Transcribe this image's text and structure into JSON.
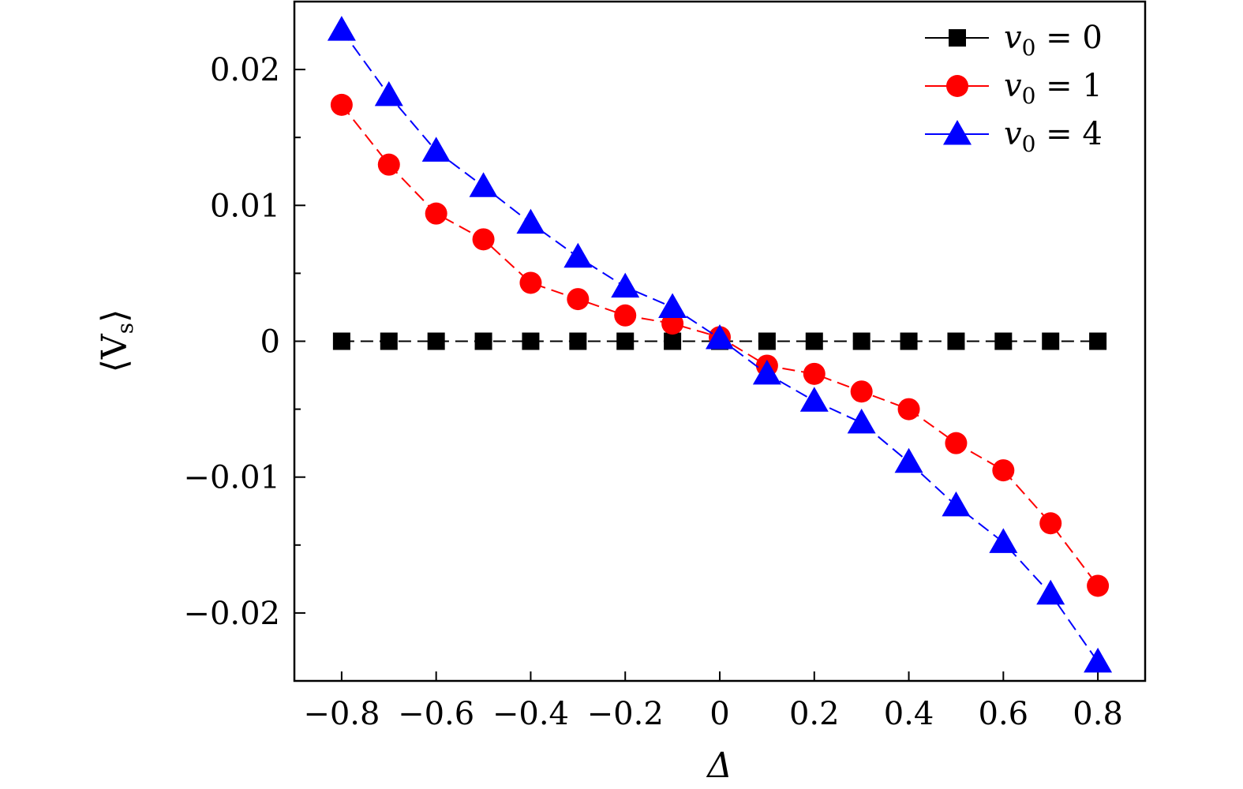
{
  "chart_data": {
    "type": "line",
    "title": "",
    "xlabel": "Δ",
    "ylabel": "⟨V",
    "ylabel_subscript": "s",
    "ylabel_close": "⟩",
    "x": [
      -0.8,
      -0.7,
      -0.6,
      -0.5,
      -0.4,
      -0.3,
      -0.2,
      -0.1,
      0,
      0.1,
      0.2,
      0.3,
      0.4,
      0.5,
      0.6,
      0.7,
      0.8
    ],
    "xlim": [
      -0.9,
      0.9
    ],
    "ylim": [
      -0.025,
      0.025
    ],
    "x_ticks": [
      -0.8,
      -0.6,
      -0.4,
      -0.2,
      0,
      0.2,
      0.4,
      0.6,
      0.8
    ],
    "x_tick_labels": [
      "−0.8",
      "−0.6",
      "−0.4",
      "−0.2",
      "0",
      "0.2",
      "0.4",
      "0.6",
      "0.8"
    ],
    "y_ticks": [
      -0.02,
      -0.01,
      0,
      0.01,
      0.02
    ],
    "y_tick_labels": [
      "−0.02",
      "−0.01",
      "0",
      "0.01",
      "0.02"
    ],
    "y_minor_ticks": [
      -0.025,
      -0.015,
      -0.005,
      0.005,
      0.015,
      0.025
    ],
    "legend_position": "top-right",
    "grid": false,
    "series": [
      {
        "name": "v0 = 0",
        "legend_var": "v",
        "legend_sub": "0",
        "legend_eq": " = 0",
        "color": "#000000",
        "marker": "square",
        "values": [
          0,
          0,
          0,
          0,
          0,
          0,
          0,
          0,
          0,
          0,
          0,
          0,
          0,
          0,
          0,
          0,
          0
        ]
      },
      {
        "name": "v0 = 1",
        "legend_var": "v",
        "legend_sub": "0",
        "legend_eq": " = 1",
        "color": "#ff0000",
        "marker": "circle",
        "values": [
          0.0174,
          0.013,
          0.0094,
          0.0075,
          0.0043,
          0.0031,
          0.0019,
          0.0013,
          0.0003,
          -0.0018,
          -0.0024,
          -0.0037,
          -0.005,
          -0.0075,
          -0.0095,
          -0.0134,
          -0.018
        ]
      },
      {
        "name": "v0 = 4",
        "legend_var": "v",
        "legend_sub": "0",
        "legend_eq": " = 4",
        "color": "#0000ff",
        "marker": "triangle",
        "values": [
          0.0229,
          0.0181,
          0.014,
          0.0114,
          0.0087,
          0.0062,
          0.004,
          0.0025,
          0.0002,
          -0.0024,
          -0.0044,
          -0.006,
          -0.0089,
          -0.0121,
          -0.0148,
          -0.0186,
          -0.0236
        ]
      }
    ]
  }
}
